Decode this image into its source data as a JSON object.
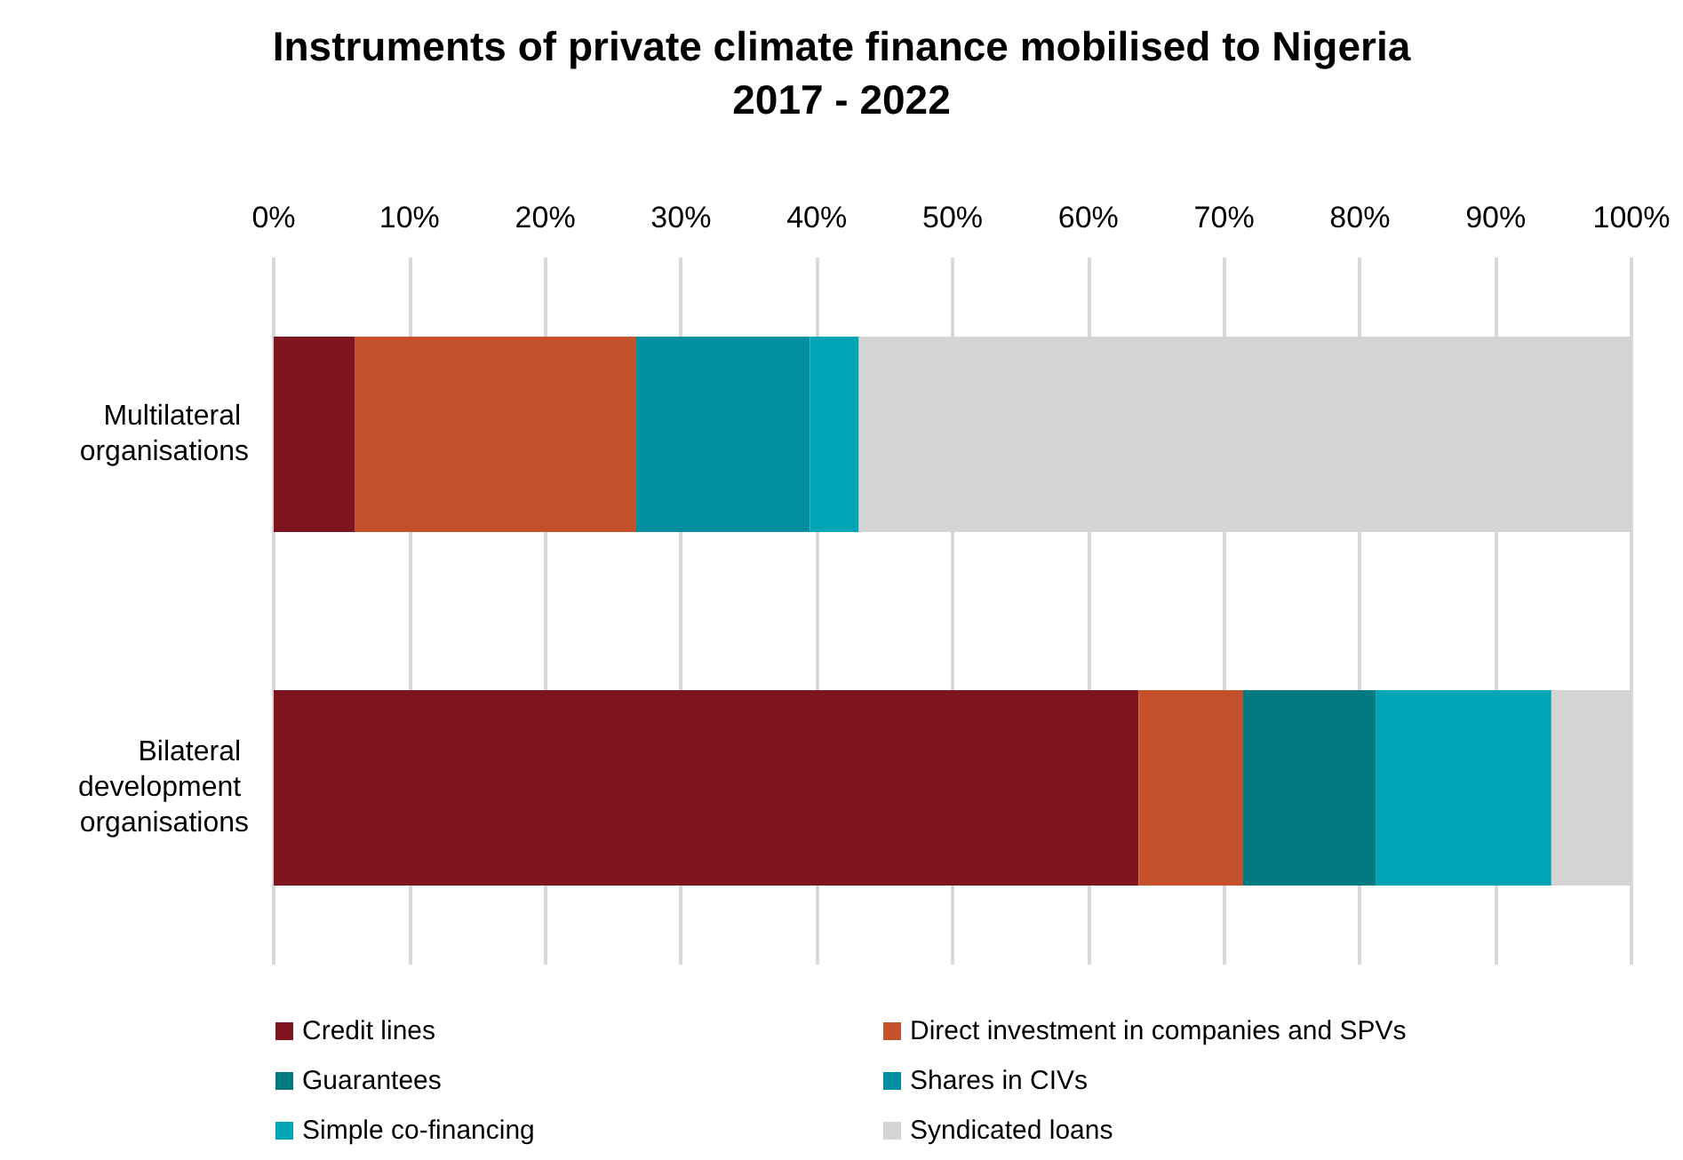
{
  "chart_data": {
    "type": "bar",
    "orientation": "horizontal",
    "stacked": true,
    "title": "Instruments of private climate finance mobilised to Nigeria\n2017 - 2022",
    "categories": [
      "Multilateral organisations",
      "Bilateral development organisations"
    ],
    "series": [
      {
        "name": "Credit lines",
        "color": "#7f151e",
        "values": [
          6.0,
          63.7
        ]
      },
      {
        "name": "Direct investment in companies and SPVs",
        "color": "#c5512c",
        "values": [
          20.7,
          7.7
        ]
      },
      {
        "name": "Guarantees",
        "color": "#007a80",
        "values": [
          0,
          9.8
        ]
      },
      {
        "name": "Shares in CIVs",
        "color": "#008f9e",
        "values": [
          12.8,
          0
        ]
      },
      {
        "name": "Simple co-financing",
        "color": "#00a5b5",
        "values": [
          3.6,
          12.9
        ]
      },
      {
        "name": "Syndicated loans",
        "color": "#d4d4d4",
        "values": [
          56.9,
          5.9
        ]
      }
    ],
    "xlim": [
      0,
      100
    ],
    "xticks": [
      {
        "value": 0,
        "label": "0%"
      },
      {
        "value": 10,
        "label": "10%"
      },
      {
        "value": 20,
        "label": "20%"
      },
      {
        "value": 30,
        "label": "30%"
      },
      {
        "value": 40,
        "label": "40%"
      },
      {
        "value": 50,
        "label": "50%"
      },
      {
        "value": 60,
        "label": "60%"
      },
      {
        "value": 70,
        "label": "70%"
      },
      {
        "value": 80,
        "label": "80%"
      },
      {
        "value": 90,
        "label": "90%"
      },
      {
        "value": 100,
        "label": "100%"
      }
    ],
    "grid": "x",
    "legend": "bottom"
  }
}
